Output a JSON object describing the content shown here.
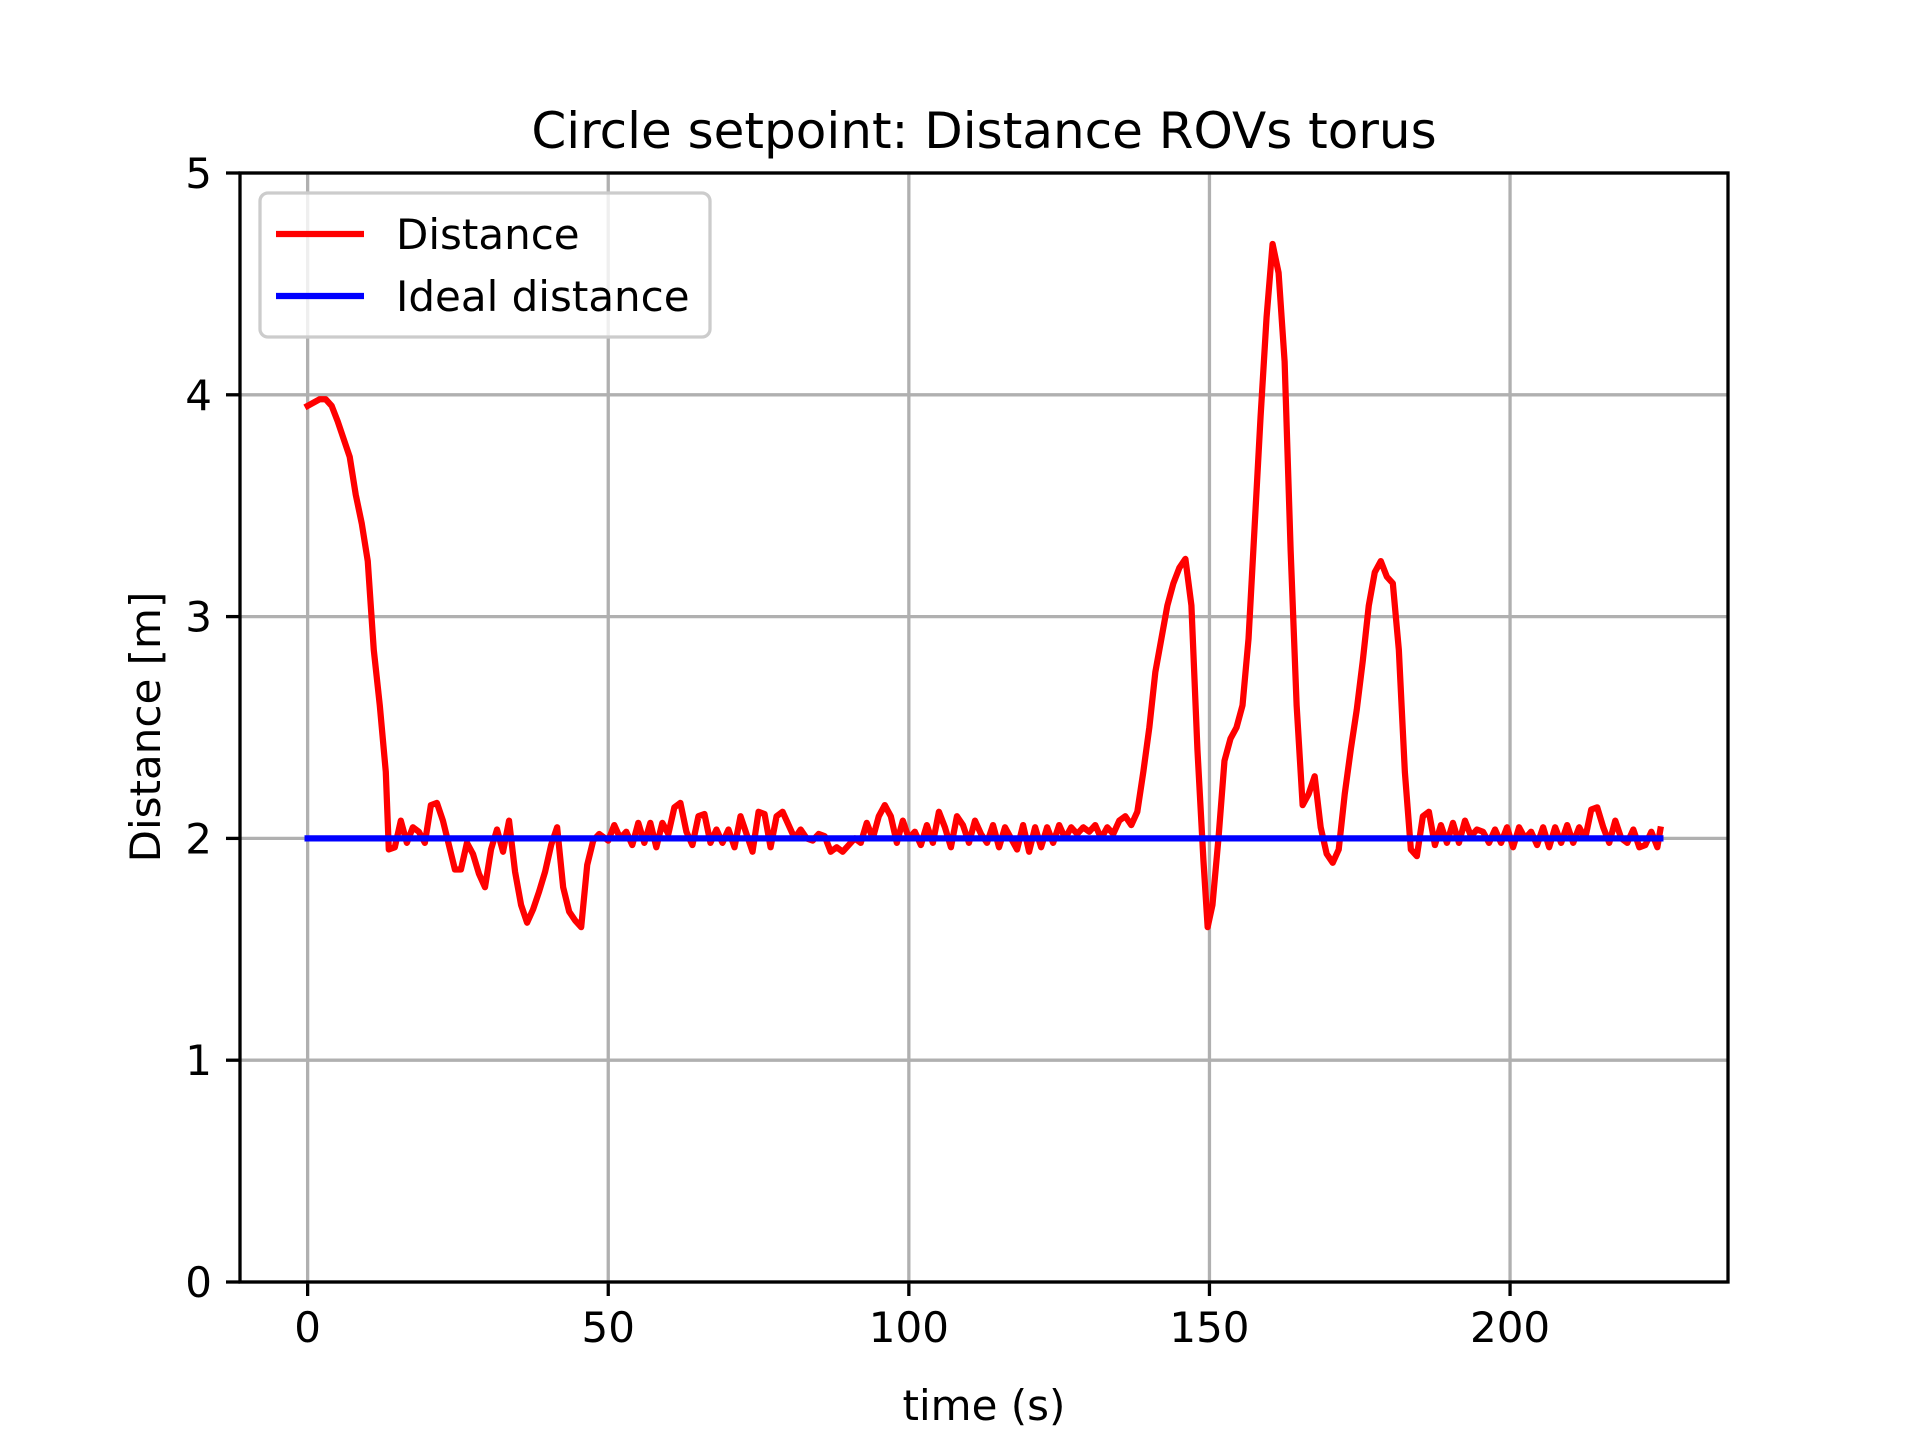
{
  "chart_data": {
    "type": "line",
    "title": "Circle setpoint: Distance ROVs torus",
    "xlabel": "time (s)",
    "ylabel": "Distance [m]",
    "xlim": [
      -11.25,
      236.25
    ],
    "ylim": [
      0,
      5
    ],
    "xticks": [
      0,
      50,
      100,
      150,
      200
    ],
    "yticks": [
      0,
      1,
      2,
      3,
      4,
      5
    ],
    "grid": true,
    "legend": "upper-left",
    "series": [
      {
        "name": "Distance",
        "color": "#ff0000",
        "x": [
          0,
          2,
          3,
          4,
          5,
          6,
          7,
          8,
          9,
          10,
          11,
          12,
          13,
          13.5,
          14.5,
          15.5,
          16.5,
          17.5,
          18.5,
          19.5,
          20.5,
          21.5,
          22.5,
          23.5,
          24.5,
          25.5,
          26.5,
          27.5,
          28.5,
          29.5,
          30.5,
          31.5,
          32.5,
          33.5,
          34.5,
          35.5,
          36.5,
          37.5,
          38.5,
          39.5,
          40.5,
          41.5,
          42.5,
          43.5,
          44.5,
          45.5,
          46.5,
          47.5,
          48.5,
          50,
          51,
          52,
          53,
          54,
          55,
          56,
          57,
          58,
          59,
          60,
          61,
          62,
          63,
          64,
          65,
          66,
          67,
          68,
          69,
          70,
          71,
          72,
          73,
          74,
          75,
          76,
          77,
          78,
          79,
          80,
          81,
          82,
          83,
          84,
          85,
          86,
          87,
          88,
          89,
          90,
          91,
          92,
          93,
          94,
          95,
          96,
          97,
          98,
          99,
          100,
          101,
          102,
          103,
          104,
          105,
          106,
          107,
          108,
          109,
          110,
          111,
          112,
          113,
          114,
          115,
          116,
          117,
          118,
          119,
          120,
          121,
          122,
          123,
          124,
          125,
          126,
          127,
          128,
          129,
          130,
          131,
          132,
          133,
          134,
          135,
          136,
          137,
          138,
          139,
          140,
          141,
          142,
          143,
          144,
          145,
          146,
          147,
          148,
          149,
          149.7,
          150.5,
          151.5,
          152.5,
          153.5,
          154.5,
          155.5,
          156.5,
          157.5,
          158.5,
          159.5,
          160.5,
          161.5,
          162.5,
          163.5,
          164.5,
          165.5,
          166.5,
          167.5,
          168.5,
          169.5,
          170.5,
          171.5,
          172.5,
          173.5,
          174.5,
          175.5,
          176.5,
          177.5,
          178.5,
          179.5,
          180.5,
          181.5,
          182.5,
          183.5,
          184.5,
          185.5,
          186.5,
          187.5,
          188.5,
          189.5,
          190.5,
          191.5,
          192.5,
          193.5,
          194.5,
          195.5,
          196.5,
          197.5,
          198.5,
          199.5,
          200.5,
          201.5,
          202.5,
          203.5,
          204.5,
          205.5,
          206.5,
          207.5,
          208.5,
          209.5,
          210.5,
          211.5,
          212.5,
          213.5,
          214.5,
          215.5,
          216.5,
          217.5,
          218.5,
          219.5,
          220.5,
          221.5,
          222.5,
          223.5,
          224.5,
          225
        ],
        "values": [
          3.95,
          3.98,
          3.98,
          3.95,
          3.88,
          3.8,
          3.72,
          3.55,
          3.42,
          3.25,
          2.85,
          2.6,
          2.3,
          1.95,
          1.96,
          2.08,
          1.98,
          2.05,
          2.03,
          1.98,
          2.15,
          2.16,
          2.08,
          1.97,
          1.86,
          1.86,
          1.98,
          1.93,
          1.84,
          1.78,
          1.95,
          2.04,
          1.94,
          2.08,
          1.85,
          1.7,
          1.62,
          1.68,
          1.76,
          1.85,
          1.97,
          2.05,
          1.78,
          1.67,
          1.63,
          1.6,
          1.88,
          1.99,
          2.02,
          1.99,
          2.06,
          2.0,
          2.03,
          1.97,
          2.07,
          1.98,
          2.07,
          1.96,
          2.07,
          2.02,
          2.14,
          2.16,
          2.03,
          1.97,
          2.1,
          2.11,
          1.98,
          2.04,
          1.98,
          2.04,
          1.96,
          2.1,
          2.02,
          1.94,
          2.12,
          2.11,
          1.96,
          2.1,
          2.12,
          2.06,
          2.0,
          2.04,
          2.0,
          1.99,
          2.02,
          2.01,
          1.94,
          1.96,
          1.94,
          1.97,
          2.0,
          1.98,
          2.07,
          2.0,
          2.1,
          2.15,
          2.1,
          1.98,
          2.08,
          2.0,
          2.03,
          1.97,
          2.06,
          1.98,
          2.12,
          2.05,
          1.96,
          2.1,
          2.06,
          1.98,
          2.08,
          2.02,
          1.98,
          2.06,
          1.96,
          2.05,
          2.0,
          1.95,
          2.06,
          1.94,
          2.05,
          1.96,
          2.05,
          1.98,
          2.06,
          2.0,
          2.05,
          2.02,
          2.05,
          2.03,
          2.06,
          2.0,
          2.05,
          2.02,
          2.08,
          2.1,
          2.06,
          2.12,
          2.3,
          2.5,
          2.75,
          2.9,
          3.05,
          3.15,
          3.22,
          3.26,
          3.05,
          2.4,
          1.9,
          1.6,
          1.7,
          2.0,
          2.35,
          2.45,
          2.5,
          2.6,
          2.9,
          3.4,
          3.9,
          4.35,
          4.68,
          4.55,
          4.15,
          3.3,
          2.6,
          2.15,
          2.2,
          2.28,
          2.05,
          1.93,
          1.89,
          1.95,
          2.2,
          2.4,
          2.58,
          2.8,
          3.05,
          3.2,
          3.25,
          3.18,
          3.15,
          2.85,
          2.3,
          1.95,
          1.92,
          2.1,
          2.12,
          1.97,
          2.06,
          1.98,
          2.07,
          1.98,
          2.08,
          2.01,
          2.04,
          2.03,
          1.98,
          2.04,
          1.98,
          2.05,
          1.96,
          2.05,
          2.0,
          2.03,
          1.97,
          2.05,
          1.96,
          2.05,
          1.98,
          2.06,
          1.98,
          2.05,
          2.0,
          2.13,
          2.14,
          2.05,
          1.98,
          2.08,
          2.0,
          1.98,
          2.04,
          1.96,
          1.97,
          2.03,
          1.96,
          2.04
        ]
      },
      {
        "name": "Ideal distance",
        "color": "#0000ff",
        "x": [
          0,
          225
        ],
        "values": [
          2,
          2
        ]
      }
    ]
  }
}
